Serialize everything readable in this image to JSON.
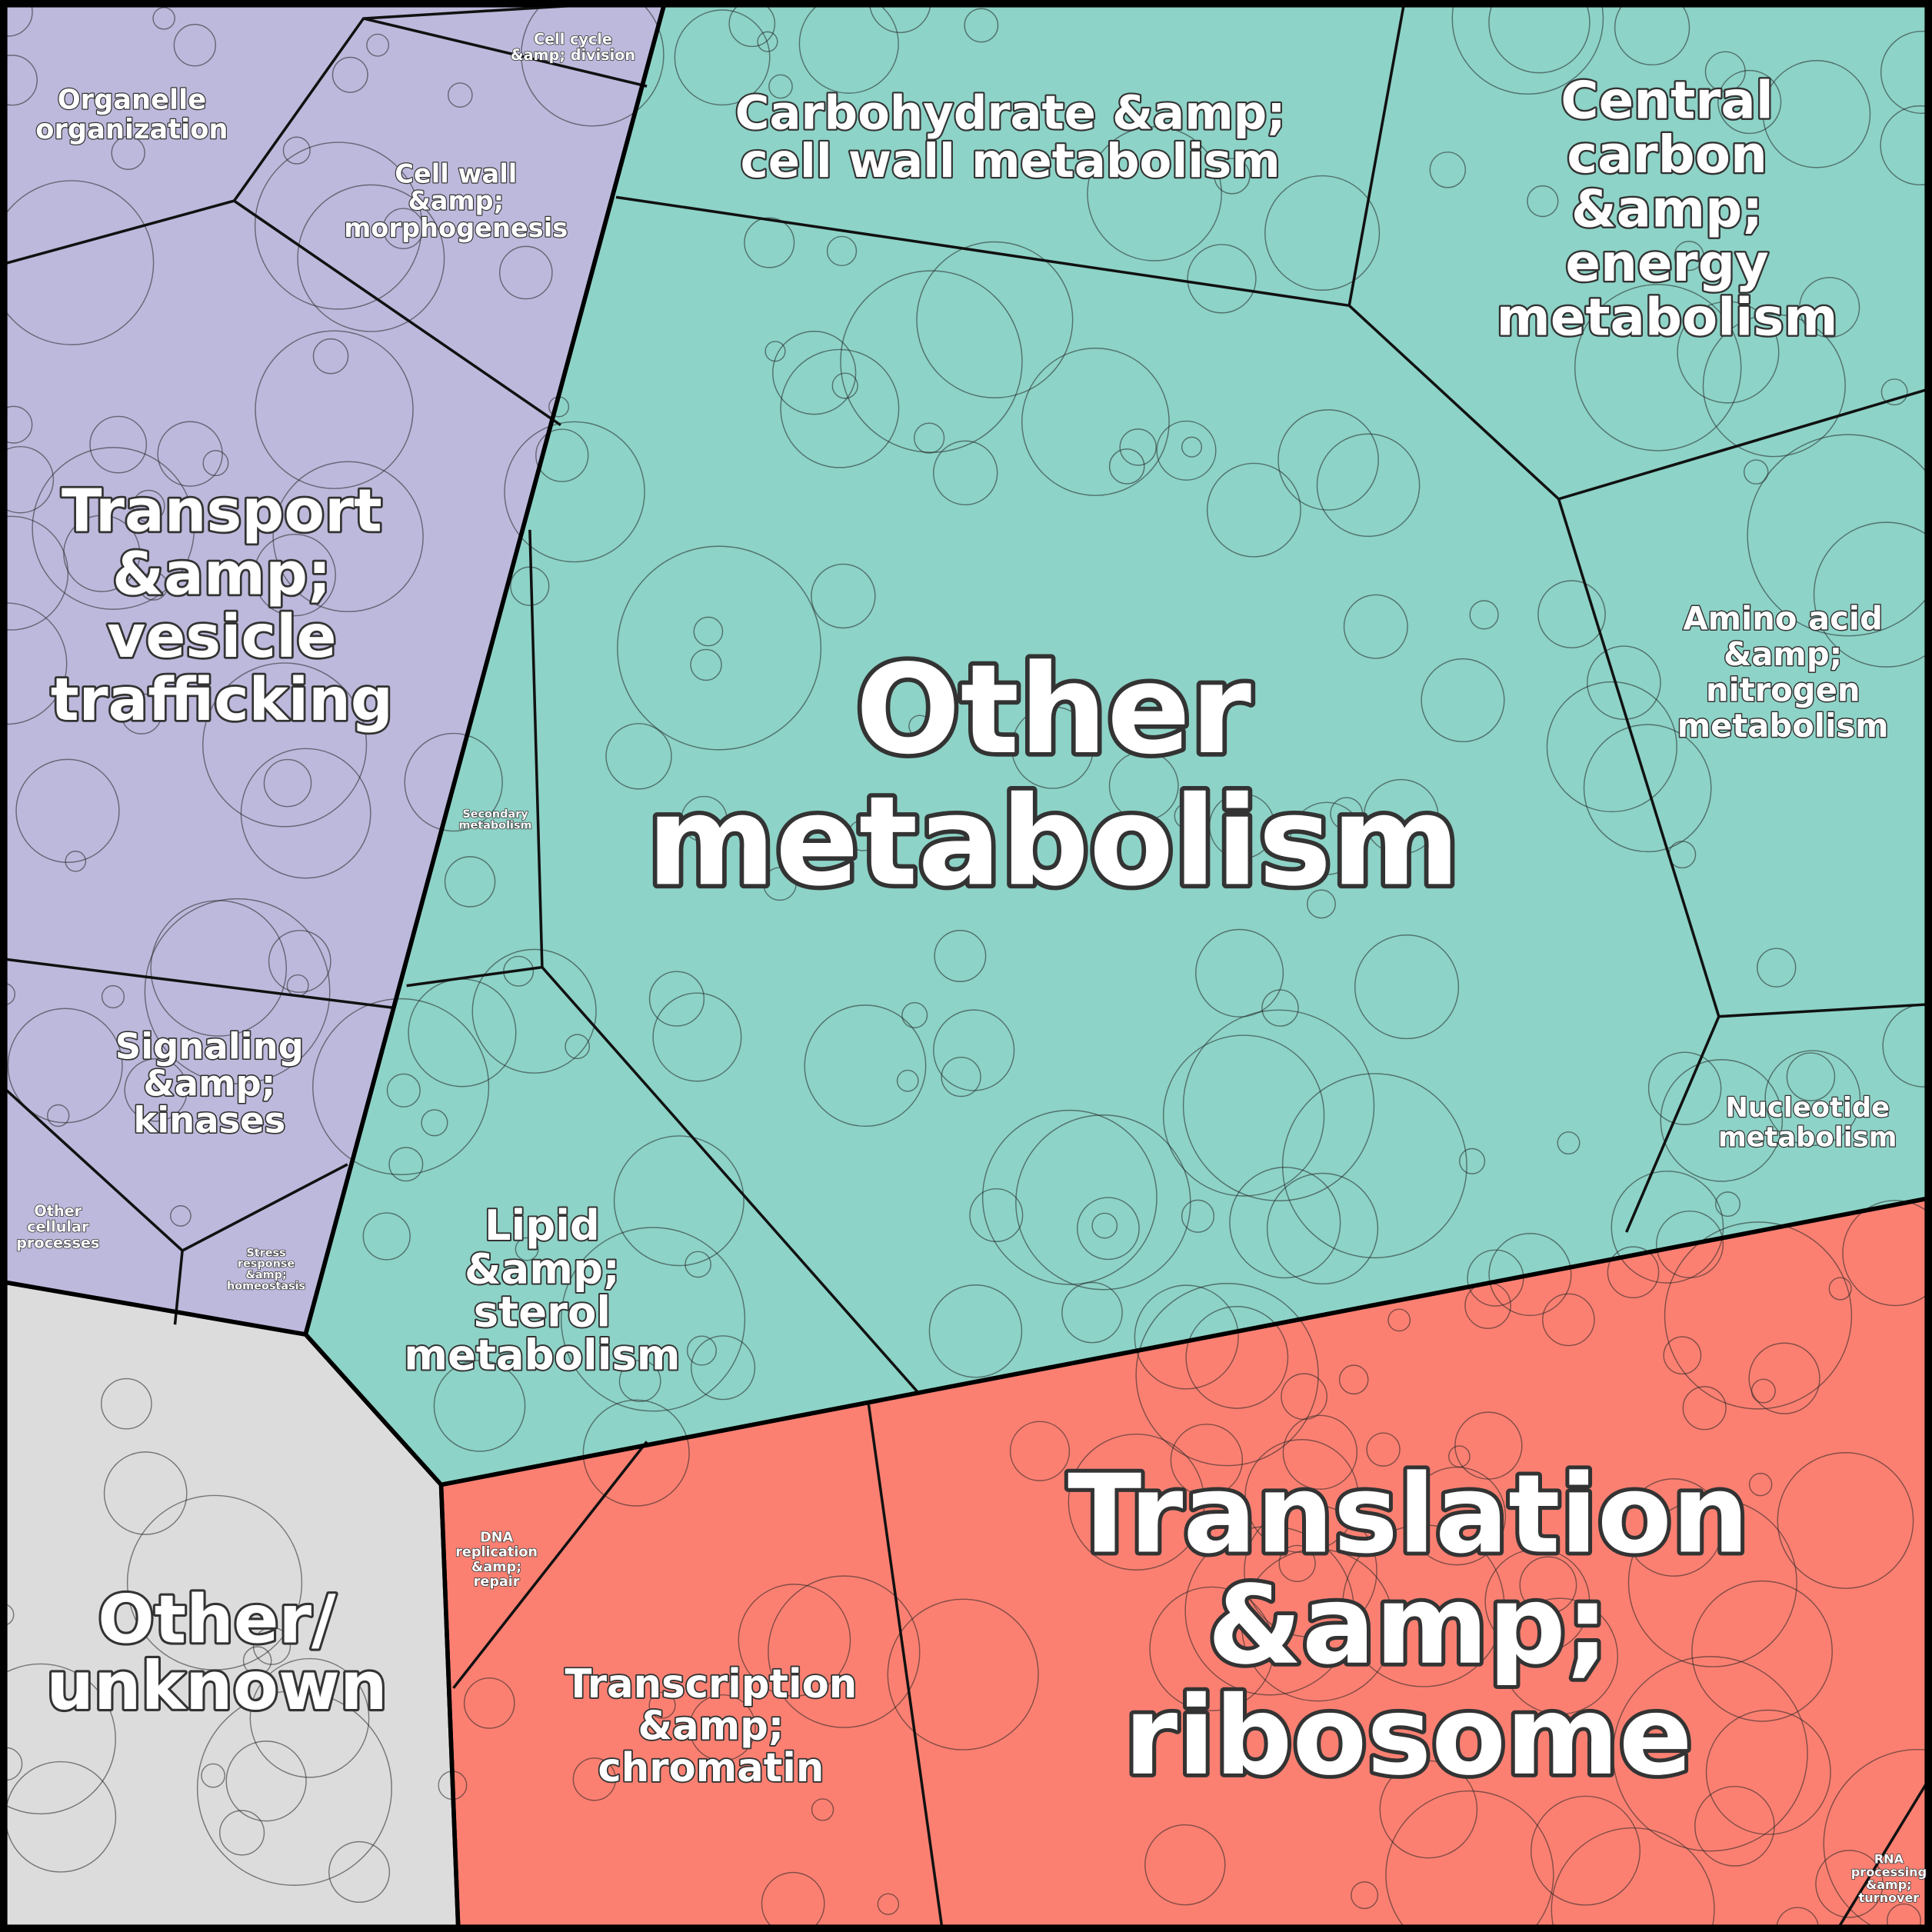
{
  "groups": [
    {
      "color": "#bcb9dc",
      "regions": [
        {
          "lines": [
            "Organelle",
            "organization"
          ]
        },
        {
          "lines": [
            "Cell cycle",
            "&amp; division"
          ]
        },
        {
          "lines": [
            "Cell wall",
            "&amp;",
            "morphogenesis"
          ]
        },
        {
          "lines": [
            "Transport",
            "&amp;",
            "vesicle",
            "trafficking"
          ]
        },
        {
          "lines": [
            "Signaling",
            "&amp;",
            "kinases"
          ]
        },
        {
          "lines": [
            "Other",
            "cellular",
            "processes"
          ]
        },
        {
          "lines": [
            "Stress",
            "response",
            "&amp;",
            "homeostasis"
          ]
        }
      ]
    },
    {
      "color": "#8dd3c7",
      "regions": [
        {
          "lines": [
            "Carbohydrate &amp;",
            "cell wall metabolism"
          ]
        },
        {
          "lines": [
            "Central",
            "carbon",
            "&amp;",
            "energy",
            "metabolism"
          ]
        },
        {
          "lines": [
            "Other",
            "metabolism"
          ]
        },
        {
          "lines": [
            "Amino acid",
            "&amp;",
            "nitrogen",
            "metabolism"
          ]
        },
        {
          "lines": [
            "Nucleotide",
            "metabolism"
          ]
        },
        {
          "lines": [
            "Lipid",
            "&amp;",
            "sterol",
            "metabolism"
          ]
        },
        {
          "lines": [
            "Secondary",
            "metabolism"
          ]
        }
      ]
    },
    {
      "color": "#fb8072",
      "regions": [
        {
          "lines": [
            "Translation",
            "&amp;",
            "ribosome"
          ]
        },
        {
          "lines": [
            "Transcription",
            "&amp;",
            "chromatin"
          ]
        },
        {
          "lines": [
            "DNA",
            "replication",
            "&amp;",
            "repair"
          ]
        },
        {
          "lines": [
            "RNA",
            "processing",
            "&amp;",
            "turnover"
          ]
        }
      ]
    },
    {
      "color": "#dcdcdc",
      "regions": [
        {
          "lines": [
            "Other/",
            "unknown"
          ]
        }
      ]
    }
  ]
}
